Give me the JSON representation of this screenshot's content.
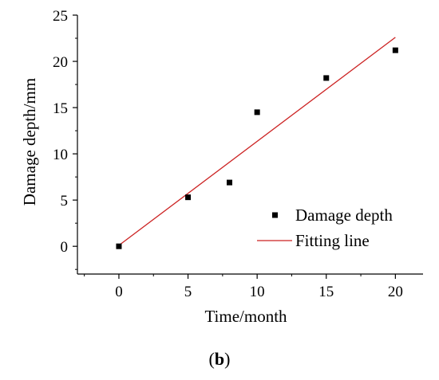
{
  "chart_data": {
    "type": "scatter",
    "xlabel": "Time/month",
    "ylabel": "Damage depth/mm",
    "xlim": [
      -3,
      22
    ],
    "ylim": [
      -3,
      25
    ],
    "xticks": [
      0,
      5,
      10,
      15,
      20
    ],
    "yticks": [
      0,
      5,
      10,
      15,
      20,
      25
    ],
    "grid": false,
    "legend_position": "lower-right",
    "series": [
      {
        "name": "Damage depth",
        "kind": "scatter",
        "marker": "square",
        "color": "#000000",
        "x": [
          0,
          5,
          8,
          10,
          15,
          20
        ],
        "y": [
          0,
          5.3,
          6.9,
          14.5,
          18.2,
          21.2
        ]
      },
      {
        "name": "Fitting line",
        "kind": "line",
        "color": "#cc2222",
        "x": [
          0,
          20
        ],
        "y": [
          0.1,
          22.6
        ]
      }
    ]
  },
  "caption": {
    "open": "(",
    "label": "b",
    "close": ")"
  }
}
